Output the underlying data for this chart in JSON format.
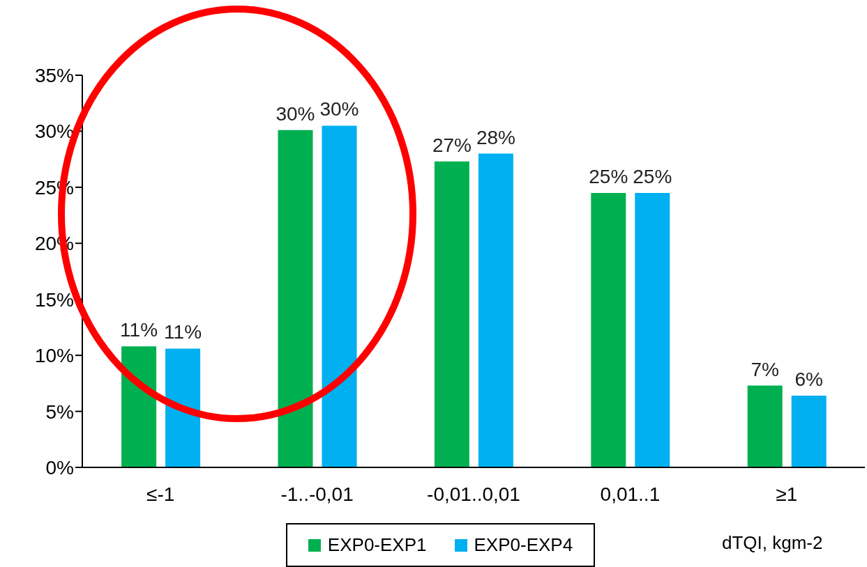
{
  "chart_data": {
    "type": "bar",
    "xlabel": "dTQI, kgm-2",
    "categories": [
      "≤-1",
      "-1..-0,01",
      "-0,01..0,01",
      "0,01..1",
      "≥1"
    ],
    "series": [
      {
        "name": "EXP0-EXP1",
        "color": "#00b050",
        "values": [
          10.8,
          30.1,
          27.3,
          24.5,
          7.3
        ],
        "value_labels": [
          "11%",
          "30%",
          "27%",
          "25%",
          "7%"
        ]
      },
      {
        "name": "EXP0-EXP4",
        "color": "#00b0f0",
        "values": [
          10.6,
          30.5,
          28.0,
          24.5,
          6.4
        ],
        "value_labels": [
          "11%",
          "30%",
          "28%",
          "25%",
          "6%"
        ]
      }
    ],
    "ylim": [
      0,
      35
    ],
    "yticks": [
      {
        "value": 0,
        "label": "0%"
      },
      {
        "value": 5,
        "label": "5%"
      },
      {
        "value": 10,
        "label": "10%"
      },
      {
        "value": 15,
        "label": "15%"
      },
      {
        "value": 20,
        "label": "20%"
      },
      {
        "value": 25,
        "label": "25%"
      },
      {
        "value": 30,
        "label": "30%"
      },
      {
        "value": 35,
        "label": "35%"
      }
    ],
    "grid": false,
    "legend": "bottom"
  }
}
